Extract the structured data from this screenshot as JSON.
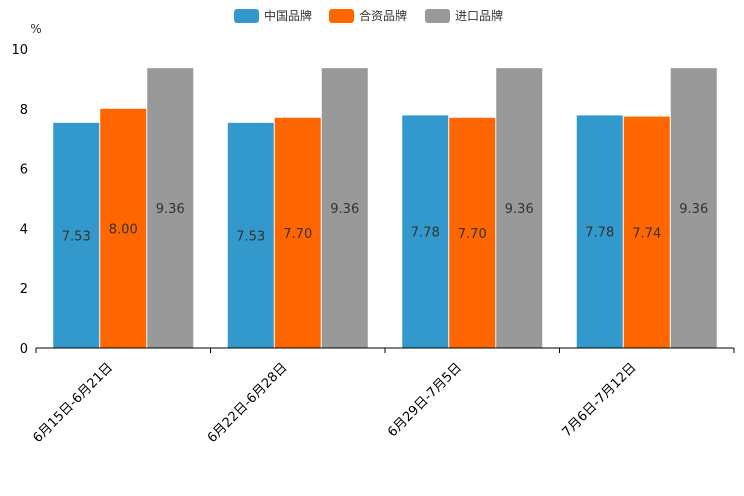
{
  "chart_data": {
    "type": "bar",
    "title": "",
    "xlabel": "",
    "ylabel": "%",
    "ylim": [
      0,
      10
    ],
    "yticks": [
      0,
      2,
      4,
      6,
      8,
      10
    ],
    "grid": false,
    "legend_position": "top-center",
    "categories": [
      "6月15日-6月21日",
      "6月22日-6月28日",
      "6月29日-7月5日",
      "7月6日-7月12日"
    ],
    "series": [
      {
        "name": "中国品牌",
        "color": "#3399cc",
        "values": [
          7.53,
          7.53,
          7.78,
          7.78
        ],
        "labels": [
          "7.53",
          "7.53",
          "7.78",
          "7.78"
        ]
      },
      {
        "name": "合资品牌",
        "color": "#ff6600",
        "values": [
          8.0,
          7.7,
          7.7,
          7.74
        ],
        "labels": [
          "8.00",
          "7.70",
          "7.70",
          "7.74"
        ]
      },
      {
        "name": "进口品牌",
        "color": "#999999",
        "values": [
          9.36,
          9.36,
          9.36,
          9.36
        ],
        "labels": [
          "9.36",
          "9.36",
          "9.36",
          "9.36"
        ]
      }
    ]
  }
}
